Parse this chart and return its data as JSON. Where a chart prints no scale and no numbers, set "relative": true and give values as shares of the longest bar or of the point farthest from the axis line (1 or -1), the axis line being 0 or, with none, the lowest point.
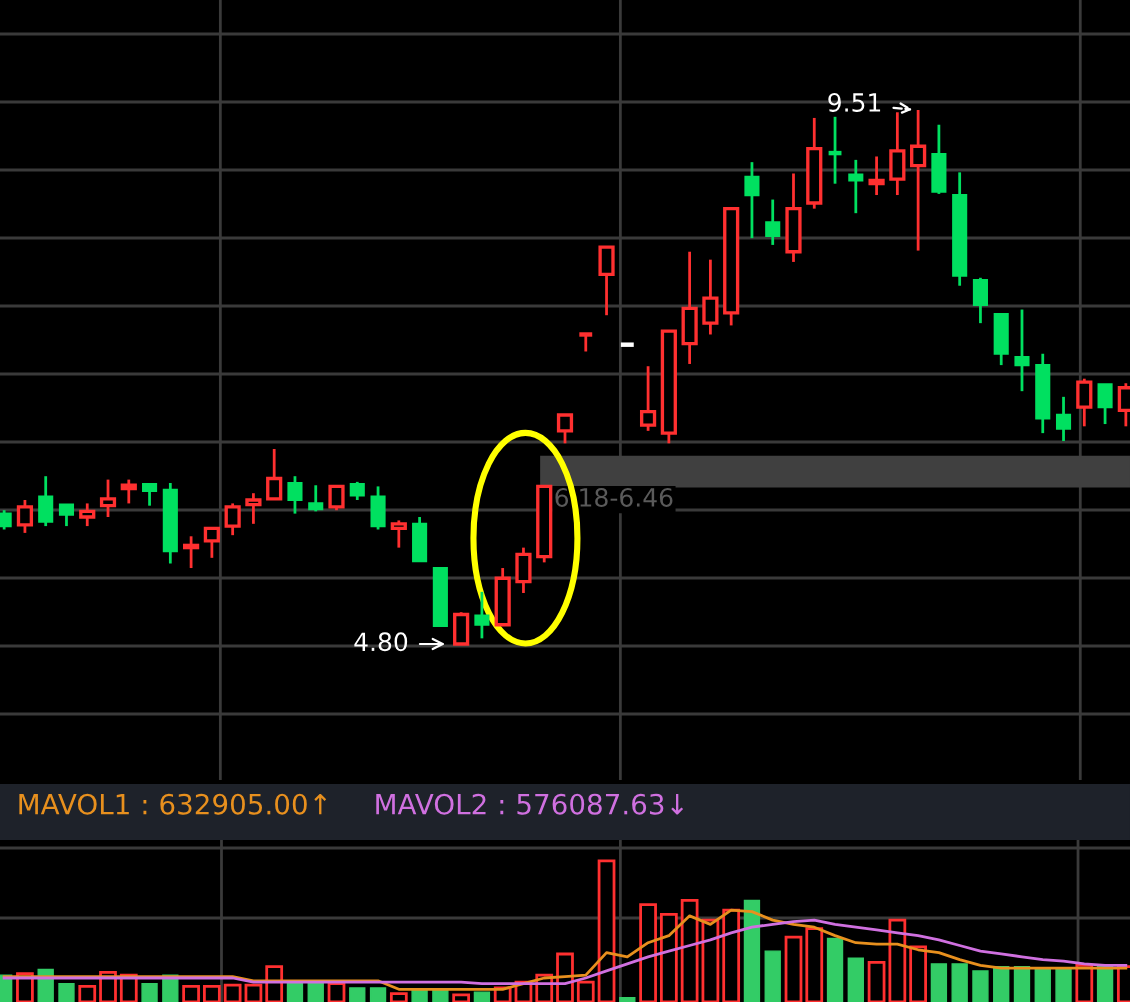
{
  "chart_data": [
    {
      "type": "candlestick",
      "categories": [
        null,
        null,
        null,
        null,
        null,
        null,
        null,
        null,
        null,
        null,
        null,
        null,
        null,
        null,
        null,
        null,
        null,
        null,
        null,
        null,
        null,
        null,
        null,
        null,
        null,
        null,
        null,
        null,
        null,
        null,
        null,
        null,
        null,
        null,
        null,
        null,
        null,
        null,
        null,
        null,
        null,
        null,
        null,
        null,
        null,
        null,
        null,
        null,
        null,
        null,
        null,
        null,
        null,
        null,
        null
      ],
      "ohlc": [
        [
          5.95,
          5.98,
          5.81,
          5.84
        ],
        [
          5.85,
          6.07,
          5.78,
          6.01
        ],
        [
          6.1,
          6.28,
          5.84,
          5.88
        ],
        [
          6.03,
          6.03,
          5.84,
          5.94
        ],
        [
          5.92,
          6.04,
          5.84,
          5.97
        ],
        [
          6.02,
          6.25,
          5.92,
          6.08
        ],
        [
          6.17,
          6.25,
          6.04,
          6.2
        ],
        [
          6.21,
          6.21,
          6.02,
          6.15
        ],
        [
          6.16,
          6.22,
          5.51,
          5.62
        ],
        [
          5.65,
          5.75,
          5.47,
          5.67
        ],
        [
          5.71,
          5.82,
          5.56,
          5.82
        ],
        [
          5.84,
          6.04,
          5.76,
          6.01
        ],
        [
          6.03,
          6.13,
          5.86,
          6.07
        ],
        [
          6.08,
          6.52,
          6.08,
          6.26
        ],
        [
          6.22,
          6.28,
          5.95,
          6.07
        ],
        [
          6.04,
          6.2,
          5.97,
          5.99
        ],
        [
          6.01,
          6.2,
          5.98,
          6.19
        ],
        [
          6.21,
          6.23,
          6.07,
          6.11
        ],
        [
          6.1,
          6.19,
          5.81,
          5.84
        ],
        [
          5.82,
          5.89,
          5.65,
          5.86
        ],
        [
          5.86,
          5.92,
          5.53,
          5.53
        ],
        [
          5.47,
          5.47,
          4.96,
          4.96
        ],
        [
          4.8,
          5.08,
          4.8,
          5.06
        ],
        [
          5.05,
          5.26,
          4.85,
          4.97
        ],
        [
          4.97,
          5.47,
          4.97,
          5.38
        ],
        [
          5.35,
          5.65,
          5.25,
          5.59
        ],
        [
          5.57,
          6.19,
          5.52,
          6.19
        ],
        [
          6.68,
          6.82,
          6.57,
          6.82
        ],
        [
          7.53,
          7.53,
          7.38,
          7.53
        ],
        [
          8.06,
          8.3,
          7.7,
          8.3
        ],
        [
          7.44,
          7.44,
          7.44,
          7.44
        ],
        [
          6.73,
          7.25,
          6.68,
          6.85
        ],
        [
          6.66,
          7.56,
          6.57,
          7.56
        ],
        [
          7.45,
          8.26,
          7.27,
          7.76
        ],
        [
          7.63,
          8.19,
          7.53,
          7.85
        ],
        [
          7.72,
          8.64,
          7.61,
          8.64
        ],
        [
          8.92,
          9.05,
          8.38,
          8.76
        ],
        [
          8.52,
          8.72,
          8.32,
          8.4
        ],
        [
          8.26,
          8.95,
          8.17,
          8.64
        ],
        [
          8.69,
          9.44,
          8.64,
          9.17
        ],
        [
          9.13,
          9.45,
          8.86,
          9.13
        ],
        [
          8.94,
          9.07,
          8.6,
          8.89
        ],
        [
          8.86,
          9.1,
          8.76,
          8.89
        ],
        [
          8.9,
          9.49,
          8.76,
          9.15
        ],
        [
          9.02,
          9.51,
          8.27,
          9.19
        ],
        [
          9.12,
          9.38,
          8.77,
          8.79
        ],
        [
          8.76,
          8.96,
          7.96,
          8.05
        ],
        [
          8.01,
          8.03,
          7.63,
          7.79
        ],
        [
          7.71,
          7.71,
          7.26,
          7.36
        ],
        [
          7.33,
          7.75,
          7.03,
          7.26
        ],
        [
          7.26,
          7.36,
          6.66,
          6.79
        ],
        [
          6.82,
          6.98,
          6.59,
          6.7
        ],
        [
          6.89,
          7.14,
          6.72,
          7.11
        ],
        [
          7.09,
          7.09,
          6.74,
          6.89
        ],
        [
          6.86,
          7.1,
          6.72,
          7.06
        ]
      ],
      "colors": [
        "#00e060",
        "#ff3030",
        "#00e060",
        "#00e060",
        "#ff3030",
        "#ff3030",
        "#ff3030",
        "#00e060",
        "#00e060",
        "#ff3030",
        "#ff3030",
        "#ff3030",
        "#ff3030",
        "#ff3030",
        "#00e060",
        "#00e060",
        "#ff3030",
        "#00e060",
        "#00e060",
        "#ff3030",
        "#00e060",
        "#00e060",
        "#ff3030",
        "#00e060",
        "#ff3030",
        "#ff3030",
        "#ff3030",
        "#ff3030",
        "#ff3030",
        "#ff3030",
        "#ffffff",
        "#ff3030",
        "#ff3030",
        "#ff3030",
        "#ff3030",
        "#ff3030",
        "#00e060",
        "#00e060",
        "#ff3030",
        "#ff3030",
        "#00e060",
        "#00e060",
        "#ff3030",
        "#ff3030",
        "#ff3030",
        "#00e060",
        "#00e060",
        "#00e060",
        "#00e060",
        "#00e060",
        "#00e060",
        "#00e060",
        "#ff3030",
        "#00e060",
        "#ff3030"
      ],
      "annotations": [
        "4.80",
        "9.51"
      ],
      "bands": [
        {
          "axis": "y",
          "from": 6.18,
          "to": 6.46,
          "label": "6.18-6.46",
          "color": "#404040"
        }
      ],
      "grid": true,
      "tick_labels": false
    },
    {
      "type": "bar",
      "relative": true,
      "categories": [
        null,
        null,
        null,
        null,
        null,
        null,
        null,
        null,
        null,
        null,
        null,
        null,
        null,
        null,
        null,
        null,
        null,
        null,
        null,
        null,
        null,
        null,
        null,
        null,
        null,
        null,
        null,
        null,
        null,
        null,
        null,
        null,
        null,
        null,
        null,
        null,
        null,
        null,
        null,
        null,
        null,
        null,
        null,
        null,
        null,
        null,
        null,
        null,
        null,
        null,
        null,
        null,
        null,
        null,
        null
      ],
      "series": [
        {
          "type": "bar",
          "values": [
            0.19,
            0.2,
            0.23,
            0.13,
            0.11,
            0.21,
            0.19,
            0.13,
            0.19,
            0.11,
            0.11,
            0.12,
            0.12,
            0.25,
            0.15,
            0.14,
            0.13,
            0.1,
            0.1,
            0.06,
            0.09,
            0.08,
            0.05,
            0.07,
            0.1,
            0.14,
            0.19,
            0.34,
            0.14,
            1,
            0.03,
            0.69,
            0.62,
            0.72,
            0.58,
            0.65,
            0.72,
            0.36,
            0.46,
            0.52,
            0.45,
            0.31,
            0.28,
            0.58,
            0.39,
            0.27,
            0.27,
            0.22,
            0.25,
            0.25,
            0.24,
            0.24,
            0.26,
            0.25,
            0.25
          ],
          "colors": [
            "#33cc66",
            "#ff3030",
            "#33cc66",
            "#33cc66",
            "#ff3030",
            "#ff3030",
            "#ff3030",
            "#33cc66",
            "#33cc66",
            "#ff3030",
            "#ff3030",
            "#ff3030",
            "#ff3030",
            "#ff3030",
            "#33cc66",
            "#33cc66",
            "#ff3030",
            "#33cc66",
            "#33cc66",
            "#ff3030",
            "#33cc66",
            "#33cc66",
            "#ff3030",
            "#33cc66",
            "#ff3030",
            "#ff3030",
            "#ff3030",
            "#ff3030",
            "#ff3030",
            "#ff3030",
            "#33cc66",
            "#ff3030",
            "#ff3030",
            "#ff3030",
            "#ff3030",
            "#ff3030",
            "#33cc66",
            "#33cc66",
            "#ff3030",
            "#ff3030",
            "#33cc66",
            "#33cc66",
            "#ff3030",
            "#ff3030",
            "#ff3030",
            "#33cc66",
            "#33cc66",
            "#33cc66",
            "#33cc66",
            "#33cc66",
            "#33cc66",
            "#33cc66",
            "#ff3030",
            "#33cc66",
            "#ff3030"
          ]
        },
        {
          "type": "line",
          "name": "MAVOL1 : 632905.00↑",
          "color": "#e8901e",
          "values": [
            0.18,
            0.18,
            0.18,
            0.18,
            0.18,
            0.18,
            0.18,
            0.18,
            0.18,
            0.18,
            0.18,
            0.18,
            0.15,
            0.15,
            0.15,
            0.15,
            0.15,
            0.15,
            0.15,
            0.09,
            0.09,
            0.09,
            0.09,
            0.09,
            0.09,
            0.13,
            0.17,
            0.18,
            0.19,
            0.35,
            0.32,
            0.42,
            0.47,
            0.61,
            0.55,
            0.65,
            0.64,
            0.58,
            0.55,
            0.53,
            0.47,
            0.42,
            0.41,
            0.41,
            0.37,
            0.35,
            0.3,
            0.26,
            0.24,
            0.24,
            0.24,
            0.24,
            0.24,
            0.24,
            0.24
          ]
        },
        {
          "type": "line",
          "name": "MAVOL2 : 576087.63↓",
          "color": "#d070e0",
          "values": [
            0.17,
            0.17,
            0.17,
            0.17,
            0.17,
            0.17,
            0.17,
            0.17,
            0.17,
            0.17,
            0.17,
            0.17,
            0.14,
            0.14,
            0.14,
            0.14,
            0.14,
            0.14,
            0.14,
            0.14,
            0.14,
            0.14,
            0.14,
            0.13,
            0.13,
            0.13,
            0.13,
            0.13,
            0.17,
            0.22,
            0.27,
            0.32,
            0.36,
            0.4,
            0.44,
            0.49,
            0.53,
            0.55,
            0.57,
            0.58,
            0.55,
            0.53,
            0.51,
            0.49,
            0.47,
            0.44,
            0.4,
            0.36,
            0.34,
            0.32,
            0.3,
            0.29,
            0.27,
            0.26,
            0.26
          ]
        }
      ],
      "legend": "top left",
      "grid": true,
      "tick_labels": false
    }
  ]
}
